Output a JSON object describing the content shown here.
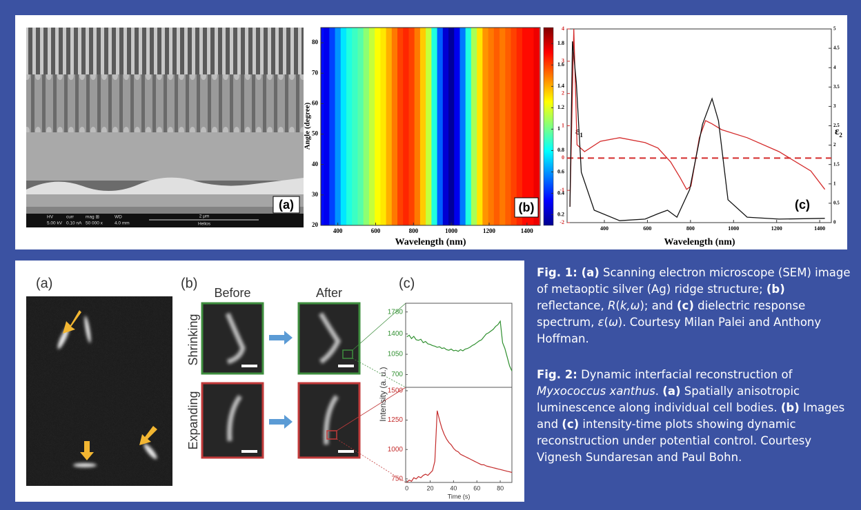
{
  "figure1": {
    "panel_a": {
      "label": "(a)",
      "info_bar": {
        "hv_label": "HV",
        "hv": "5.00 kV",
        "curr_label": "curr",
        "curr": "0.10 nA",
        "mag_label": "mag ⊞",
        "mag": "50 000 x",
        "wd_label": "WD",
        "wd": "4.0 mm",
        "scale": "2 μm",
        "instrument": "Helios"
      }
    },
    "panel_b": {
      "label": "(b)",
      "x_label": "Wavelength (nm)",
      "y_label": "Angle (degree)",
      "xlim": [
        310,
        1470
      ],
      "xticks": [
        400,
        600,
        800,
        1000,
        1200,
        1400
      ],
      "ylim": [
        20,
        85
      ],
      "yticks": [
        20,
        30,
        40,
        50,
        60,
        70,
        80
      ],
      "colormap": "jet",
      "colorbar_lim": [
        0.1,
        1.95
      ],
      "colorbar_ticks": [
        0.2,
        0.4,
        0.6,
        0.8,
        1,
        1.2,
        1.4,
        1.6,
        1.8
      ],
      "wavelengths": [
        310,
        340,
        370,
        400,
        430,
        460,
        490,
        520,
        550,
        580,
        610,
        640,
        670,
        700,
        730,
        760,
        790,
        820,
        850,
        880,
        910,
        940,
        970,
        1000,
        1030,
        1060,
        1090,
        1120,
        1150,
        1180,
        1210,
        1240,
        1270,
        1300,
        1330,
        1360,
        1390,
        1420,
        1450
      ],
      "reflectance": [
        0.35,
        0.3,
        0.45,
        0.6,
        0.75,
        0.85,
        0.9,
        0.95,
        1.05,
        1.15,
        1.25,
        1.3,
        1.4,
        1.5,
        1.6,
        1.65,
        1.6,
        1.5,
        1.35,
        1.15,
        0.85,
        0.5,
        0.25,
        0.15,
        0.3,
        0.55,
        0.85,
        1.1,
        1.3,
        1.45,
        1.5,
        1.55,
        1.5,
        1.55,
        1.6,
        1.65,
        1.7,
        1.7,
        1.75
      ]
    },
    "panel_c": {
      "label": "(c)",
      "x_label": "Wavelength (nm)",
      "y_label": "ε",
      "y_label_sub": "1",
      "y2_label": "ε",
      "y2_label_sub": "2",
      "xlim": [
        227,
        1454
      ],
      "xticks": [
        400,
        600,
        800,
        1000,
        1200,
        1400
      ],
      "ylim": [
        -2,
        4
      ],
      "yticks": [
        -2,
        -1,
        0,
        1,
        2,
        3,
        4
      ],
      "y2lim": [
        0,
        5
      ],
      "y2ticks": [
        0,
        0.5,
        1,
        1.5,
        2,
        2.5,
        3,
        3.5,
        4,
        4.5,
        5
      ],
      "reference_line": 0,
      "reference_color": "#d42a2a",
      "series": [
        {
          "color": "#d42a2a",
          "axis": "y",
          "x": [
            240,
            258,
            273,
            308,
            382,
            471,
            589,
            649,
            708,
            752,
            782,
            802,
            841,
            870,
            900,
            944,
            1063,
            1211,
            1359,
            1424
          ],
          "values": [
            -1.51,
            4.0,
            0.41,
            0.2,
            0.52,
            0.63,
            0.48,
            0.31,
            -0.12,
            -0.61,
            -0.97,
            -0.87,
            0.63,
            1.16,
            1.06,
            0.88,
            0.63,
            0.2,
            -0.4,
            -0.97
          ]
        },
        {
          "color": "#111111",
          "axis": "y2",
          "x": [
            240,
            252,
            270,
            293,
            353,
            471,
            589,
            649,
            693,
            737,
            796,
            856,
            900,
            930,
            974,
            1063,
            1211,
            1424
          ],
          "values": [
            0.41,
            4.68,
            3.61,
            1.3,
            0.32,
            0.05,
            0.09,
            0.23,
            0.32,
            0.14,
            0.85,
            2.54,
            3.2,
            2.63,
            0.59,
            0.14,
            0.09,
            0.11
          ]
        }
      ]
    }
  },
  "figure2": {
    "panel_a": {
      "label": "(a)"
    },
    "panel_b": {
      "label": "(b)",
      "before": "Before",
      "after": "After",
      "shrinking": "Shrinking",
      "expanding": "Expanding"
    },
    "panel_c": {
      "label": "(c)",
      "x_label": "Time (s)",
      "y_label": "Intensity (a. u.)",
      "xlim": [
        -1,
        90
      ],
      "xticks": [
        0,
        20,
        40,
        60,
        80
      ],
      "time": [
        0,
        2,
        4,
        6,
        8,
        10,
        12,
        14,
        16,
        18,
        20,
        22,
        24,
        26,
        28,
        30,
        32,
        34,
        36,
        38,
        40,
        42,
        44,
        46,
        48,
        50,
        52,
        54,
        56,
        58,
        60,
        62,
        64,
        66,
        68,
        70,
        72,
        74,
        76,
        78,
        80,
        82,
        84,
        86,
        88,
        90
      ],
      "shrinking": {
        "color": "#2f8f2f",
        "ylim": [
          480,
          1930
        ],
        "yticks": [
          700,
          1050,
          1400,
          1780
        ],
        "values": [
          1350,
          1380,
          1320,
          1360,
          1300,
          1290,
          1310,
          1250,
          1270,
          1230,
          1220,
          1200,
          1190,
          1170,
          1180,
          1150,
          1160,
          1130,
          1120,
          1140,
          1110,
          1120,
          1100,
          1130,
          1110,
          1140,
          1150,
          1170,
          1200,
          1220,
          1250,
          1280,
          1300,
          1350,
          1400,
          1420,
          1450,
          1480,
          1530,
          1560,
          1620,
          1250,
          1150,
          1000,
          850,
          760
        ]
      },
      "expanding": {
        "color": "#c42b2b",
        "ylim": [
          720,
          1529
        ],
        "yticks": [
          750,
          1000,
          1250,
          1500
        ],
        "values": [
          720,
          740,
          730,
          760,
          750,
          770,
          760,
          780,
          790,
          780,
          800,
          820,
          900,
          1330,
          1250,
          1180,
          1130,
          1090,
          1060,
          1040,
          1010,
          990,
          980,
          960,
          950,
          940,
          930,
          920,
          910,
          900,
          890,
          880,
          870,
          870,
          860,
          855,
          850,
          845,
          840,
          835,
          830,
          825,
          820,
          815,
          810,
          805
        ]
      }
    }
  },
  "captions": {
    "fig1": [
      {
        "text": "Fig. 1: (a)",
        "style": "bold"
      },
      {
        "text": " Scanning electron microscope (SEM) image of metaoptic silver (Ag) ridge structure; ",
        "style": "regular"
      },
      {
        "text": "(b)",
        "style": "bold"
      },
      {
        "text": " reflectance, ",
        "style": "regular"
      },
      {
        "text": "R",
        "style": "italic"
      },
      {
        "text": "(",
        "style": "regular"
      },
      {
        "text": "k,ω",
        "style": "italic"
      },
      {
        "text": "); and ",
        "style": "regular"
      },
      {
        "text": "(c)",
        "style": "bold"
      },
      {
        "text": " dielectric response spectrum, ",
        "style": "regular"
      },
      {
        "text": "ε",
        "style": "italic"
      },
      {
        "text": "(",
        "style": "regular"
      },
      {
        "text": "ω",
        "style": "italic"
      },
      {
        "text": "). Courtesy Milan Palei and Anthony Hoffman.",
        "style": "regular"
      }
    ],
    "fig2": [
      {
        "text": "Fig. 2:",
        "style": "bold"
      },
      {
        "text": " Dynamic interfacial reconstruction of ",
        "style": "regular"
      },
      {
        "text": "Myxococcus xanthus",
        "style": "italic"
      },
      {
        "text": ". ",
        "style": "regular"
      },
      {
        "text": "(a)",
        "style": "bold"
      },
      {
        "text": " Spatially anisotropic luminescence along individual cell bodies. ",
        "style": "regular"
      },
      {
        "text": "(b)",
        "style": "bold"
      },
      {
        "text": " Images and ",
        "style": "regular"
      },
      {
        "text": "(c)",
        "style": "bold"
      },
      {
        "text": " intensity-time plots showing dynamic reconstruction under potential control. Courtesy Vignesh Sundaresan and Paul Bohn.",
        "style": "regular"
      }
    ]
  }
}
